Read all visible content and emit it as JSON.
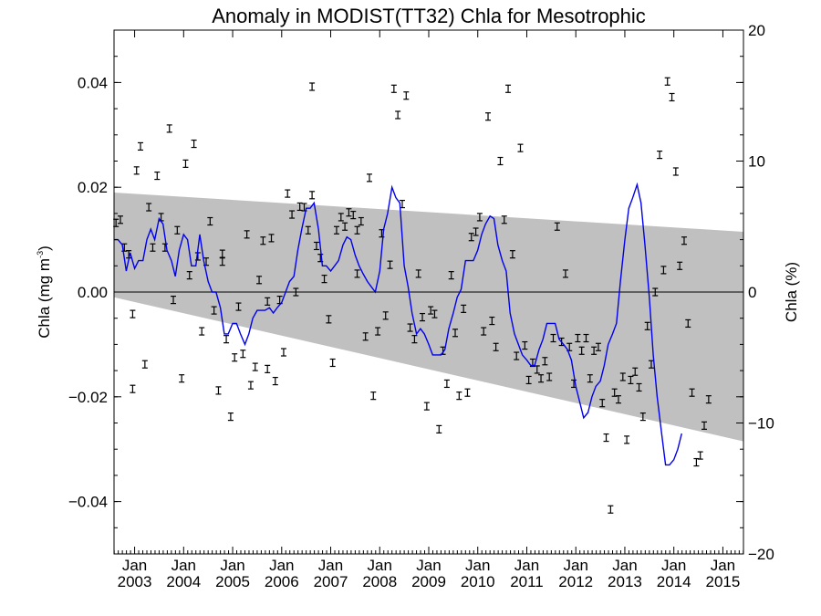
{
  "chart_data": {
    "type": "scatter",
    "title": "Anomaly in MODIST(TT32) Chla for Mesotrophic",
    "ylabel_left": "Chla (mg m",
    "ylabel_left_sup": "-3",
    "ylabel_left_end": ")",
    "ylabel_right": "Chla (%)",
    "x_range": [
      "2002-08-01",
      "2015-05-01"
    ],
    "ylim_left": [
      -0.05,
      0.05
    ],
    "ylim_right": [
      -20,
      20
    ],
    "y_ticks_left": [
      {
        "value": 0.04,
        "label": "0.04"
      },
      {
        "value": 0.02,
        "label": "0.02"
      },
      {
        "value": 0.0,
        "label": "0.00"
      },
      {
        "value": -0.02,
        "label": "−0.02"
      },
      {
        "value": -0.04,
        "label": "−0.04"
      }
    ],
    "y_ticks_right": [
      {
        "value": 20,
        "label": "20"
      },
      {
        "value": 10,
        "label": "10"
      },
      {
        "value": 0,
        "label": "0"
      },
      {
        "value": -10,
        "label": "−10"
      },
      {
        "value": -20,
        "label": "−20"
      }
    ],
    "x_ticks": [
      {
        "month": "Jan",
        "year": "2003",
        "x": 2003.0
      },
      {
        "month": "Jan",
        "year": "2004",
        "x": 2004.0
      },
      {
        "month": "Jan",
        "year": "2005",
        "x": 2005.0
      },
      {
        "month": "Jan",
        "year": "2006",
        "x": 2006.0
      },
      {
        "month": "Jan",
        "year": "2007",
        "x": 2007.0
      },
      {
        "month": "Jan",
        "year": "2008",
        "x": 2008.0
      },
      {
        "month": "Jan",
        "year": "2009",
        "x": 2009.0
      },
      {
        "month": "Jan",
        "year": "2010",
        "x": 2010.0
      },
      {
        "month": "Jan",
        "year": "2011",
        "x": 2011.0
      },
      {
        "month": "Jan",
        "year": "2012",
        "x": 2012.0
      },
      {
        "month": "Jan",
        "year": "2013",
        "x": 2013.0
      },
      {
        "month": "Jan",
        "year": "2014",
        "x": 2014.0
      },
      {
        "month": "Jan",
        "year": "2015",
        "x": 2015.0
      }
    ],
    "zero_line": 0.0,
    "envelope": {
      "upper": [
        [
          2002.58,
          0.019
        ],
        [
          2015.42,
          0.0115
        ]
      ],
      "lower": [
        [
          2002.58,
          -0.001
        ],
        [
          2015.42,
          -0.0285
        ]
      ],
      "color": "#c0c0c0"
    },
    "colors": {
      "line": "#0000ee",
      "points": "#000000",
      "axes": "#000000"
    },
    "monthly_anomalies": [
      [
        2002.62,
        0.0132
      ],
      [
        2002.71,
        0.0138
      ],
      [
        2002.79,
        0.0085
      ],
      [
        2002.88,
        0.0072
      ],
      [
        2002.96,
        -0.0042
      ],
      [
        2002.96,
        -0.0185
      ],
      [
        2003.04,
        0.0232
      ],
      [
        2003.12,
        0.0278
      ],
      [
        2003.21,
        -0.0138
      ],
      [
        2003.29,
        0.0162
      ],
      [
        2003.37,
        0.0085
      ],
      [
        2003.46,
        0.0222
      ],
      [
        2003.54,
        0.0143
      ],
      [
        2003.62,
        0.0085
      ],
      [
        2003.71,
        0.0312
      ],
      [
        2003.79,
        -0.0015
      ],
      [
        2003.87,
        0.0118
      ],
      [
        2003.96,
        -0.0165
      ],
      [
        2004.04,
        0.0245
      ],
      [
        2004.12,
        0.0032
      ],
      [
        2004.21,
        0.0283
      ],
      [
        2004.29,
        0.0068
      ],
      [
        2004.37,
        -0.0075
      ],
      [
        2004.46,
        0.0058
      ],
      [
        2004.54,
        0.0135
      ],
      [
        2004.62,
        -0.0035
      ],
      [
        2004.71,
        -0.0188
      ],
      [
        2004.79,
        0.0073
      ],
      [
        2004.79,
        0.0058
      ],
      [
        2004.87,
        -0.009
      ],
      [
        2004.96,
        -0.0238
      ],
      [
        2005.04,
        -0.0125
      ],
      [
        2005.12,
        -0.0028
      ],
      [
        2005.21,
        -0.0118
      ],
      [
        2005.29,
        0.011
      ],
      [
        2005.37,
        -0.0178
      ],
      [
        2005.46,
        -0.0143
      ],
      [
        2005.54,
        0.0023
      ],
      [
        2005.62,
        0.0098
      ],
      [
        2005.71,
        -0.0018
      ],
      [
        2005.71,
        -0.0147
      ],
      [
        2005.79,
        0.0103
      ],
      [
        2005.87,
        -0.017
      ],
      [
        2005.96,
        -0.0015
      ],
      [
        2006.04,
        -0.0115
      ],
      [
        2006.12,
        0.0188
      ],
      [
        2006.21,
        0.0148
      ],
      [
        2006.29,
        0.0
      ],
      [
        2006.37,
        0.0163
      ],
      [
        2006.46,
        0.0162
      ],
      [
        2006.54,
        0.0118
      ],
      [
        2006.62,
        0.0185
      ],
      [
        2006.62,
        0.0392
      ],
      [
        2006.71,
        0.0088
      ],
      [
        2006.79,
        0.0065
      ],
      [
        2006.87,
        0.0025
      ],
      [
        2006.96,
        -0.0052
      ],
      [
        2007.04,
        -0.0135
      ],
      [
        2007.12,
        0.0118
      ],
      [
        2007.21,
        0.0143
      ],
      [
        2007.29,
        0.0125
      ],
      [
        2007.37,
        0.0152
      ],
      [
        2007.46,
        0.0147
      ],
      [
        2007.54,
        0.0118
      ],
      [
        2007.54,
        0.0035
      ],
      [
        2007.62,
        0.0135
      ],
      [
        2007.71,
        -0.0085
      ],
      [
        2007.79,
        0.0218
      ],
      [
        2007.87,
        -0.0198
      ],
      [
        2007.96,
        -0.0075
      ],
      [
        2008.04,
        0.0112
      ],
      [
        2008.12,
        -0.0045
      ],
      [
        2008.21,
        0.0052
      ],
      [
        2008.29,
        0.0388
      ],
      [
        2008.37,
        0.0338
      ],
      [
        2008.46,
        0.0168
      ],
      [
        2008.54,
        0.0375
      ],
      [
        2008.62,
        -0.0068
      ],
      [
        2008.71,
        -0.009
      ],
      [
        2008.79,
        0.0035
      ],
      [
        2008.87,
        -0.0048
      ],
      [
        2008.96,
        -0.0218
      ],
      [
        2009.04,
        -0.0035
      ],
      [
        2009.12,
        -0.0042
      ],
      [
        2009.21,
        -0.0262
      ],
      [
        2009.29,
        -0.0112
      ],
      [
        2009.37,
        -0.0175
      ],
      [
        2009.46,
        0.0032
      ],
      [
        2009.54,
        -0.0078
      ],
      [
        2009.62,
        -0.0198
      ],
      [
        2009.71,
        -0.0032
      ],
      [
        2009.79,
        -0.0192
      ],
      [
        2009.87,
        0.0105
      ],
      [
        2009.96,
        0.0115
      ],
      [
        2010.04,
        0.0143
      ],
      [
        2010.12,
        -0.0075
      ],
      [
        2010.21,
        0.0335
      ],
      [
        2010.29,
        -0.0055
      ],
      [
        2010.37,
        -0.0105
      ],
      [
        2010.46,
        0.025
      ],
      [
        2010.54,
        0.0138
      ],
      [
        2010.62,
        0.0388
      ],
      [
        2010.71,
        0.0072
      ],
      [
        2010.79,
        -0.0122
      ],
      [
        2010.87,
        0.0275
      ],
      [
        2010.96,
        -0.0102
      ],
      [
        2011.04,
        -0.0168
      ],
      [
        2011.12,
        -0.0135
      ],
      [
        2011.21,
        -0.0148
      ],
      [
        2011.29,
        -0.0165
      ],
      [
        2011.37,
        -0.0132
      ],
      [
        2011.46,
        -0.0162
      ],
      [
        2011.54,
        -0.0088
      ],
      [
        2011.62,
        0.0125
      ],
      [
        2011.71,
        -0.0095
      ],
      [
        2011.79,
        0.0035
      ],
      [
        2011.87,
        -0.0105
      ],
      [
        2011.96,
        -0.0175
      ],
      [
        2012.04,
        -0.0088
      ],
      [
        2012.12,
        -0.0112
      ],
      [
        2012.21,
        -0.0088
      ],
      [
        2012.29,
        -0.0165
      ],
      [
        2012.37,
        -0.0112
      ],
      [
        2012.46,
        -0.0105
      ],
      [
        2012.54,
        -0.0212
      ],
      [
        2012.62,
        -0.0278
      ],
      [
        2012.71,
        -0.0415
      ],
      [
        2012.79,
        -0.0192
      ],
      [
        2012.87,
        -0.0205
      ],
      [
        2012.96,
        -0.0162
      ],
      [
        2013.04,
        -0.0282
      ],
      [
        2013.12,
        -0.0168
      ],
      [
        2013.21,
        -0.0152
      ],
      [
        2013.29,
        -0.0182
      ],
      [
        2013.37,
        -0.0238
      ],
      [
        2013.46,
        -0.0065
      ],
      [
        2013.54,
        -0.0138
      ],
      [
        2013.62,
        0.0
      ],
      [
        2013.71,
        0.0262
      ],
      [
        2013.79,
        0.0042
      ],
      [
        2013.87,
        0.0402
      ],
      [
        2013.96,
        0.0372
      ],
      [
        2014.04,
        0.023
      ],
      [
        2014.12,
        0.005
      ],
      [
        2014.21,
        0.0098
      ],
      [
        2014.29,
        -0.006
      ],
      [
        2014.37,
        -0.0192
      ],
      [
        2014.46,
        -0.0325
      ],
      [
        2014.54,
        -0.0312
      ],
      [
        2014.62,
        -0.0255
      ],
      [
        2014.71,
        -0.0205
      ]
    ],
    "smoothed_series": [
      [
        2002.58,
        0.01
      ],
      [
        2002.66,
        0.01
      ],
      [
        2002.75,
        0.009
      ],
      [
        2002.83,
        0.004
      ],
      [
        2002.91,
        0.0075
      ],
      [
        2003.0,
        0.0045
      ],
      [
        2003.08,
        0.006
      ],
      [
        2003.17,
        0.006
      ],
      [
        2003.25,
        0.01
      ],
      [
        2003.33,
        0.012
      ],
      [
        2003.41,
        0.01
      ],
      [
        2003.5,
        0.014
      ],
      [
        2003.58,
        0.013
      ],
      [
        2003.66,
        0.008
      ],
      [
        2003.75,
        0.006
      ],
      [
        2003.83,
        0.003
      ],
      [
        2003.91,
        0.008
      ],
      [
        2004.0,
        0.011
      ],
      [
        2004.08,
        0.01
      ],
      [
        2004.16,
        0.005
      ],
      [
        2004.25,
        0.005
      ],
      [
        2004.33,
        0.011
      ],
      [
        2004.41,
        0.006
      ],
      [
        2004.5,
        0.002
      ],
      [
        2004.58,
        0.0
      ],
      [
        2004.66,
        0.0
      ],
      [
        2004.75,
        -0.003
      ],
      [
        2004.83,
        -0.008
      ],
      [
        2004.91,
        -0.008
      ],
      [
        2005.0,
        -0.006
      ],
      [
        2005.08,
        -0.006
      ],
      [
        2005.16,
        -0.008
      ],
      [
        2005.25,
        -0.01
      ],
      [
        2005.33,
        -0.008
      ],
      [
        2005.41,
        -0.005
      ],
      [
        2005.5,
        -0.0035
      ],
      [
        2005.58,
        -0.0035
      ],
      [
        2005.66,
        -0.0035
      ],
      [
        2005.75,
        -0.003
      ],
      [
        2005.83,
        -0.004
      ],
      [
        2005.91,
        -0.003
      ],
      [
        2006.0,
        -0.002
      ],
      [
        2006.08,
        0.0
      ],
      [
        2006.16,
        0.002
      ],
      [
        2006.25,
        0.003
      ],
      [
        2006.33,
        0.008
      ],
      [
        2006.41,
        0.012
      ],
      [
        2006.5,
        0.016
      ],
      [
        2006.58,
        0.016
      ],
      [
        2006.66,
        0.017
      ],
      [
        2006.75,
        0.012
      ],
      [
        2006.83,
        0.005
      ],
      [
        2006.91,
        0.005
      ],
      [
        2007.0,
        0.004
      ],
      [
        2007.08,
        0.005
      ],
      [
        2007.16,
        0.006
      ],
      [
        2007.25,
        0.009
      ],
      [
        2007.33,
        0.0105
      ],
      [
        2007.41,
        0.01
      ],
      [
        2007.5,
        0.007
      ],
      [
        2007.58,
        0.005
      ],
      [
        2007.66,
        0.0035
      ],
      [
        2007.75,
        0.002
      ],
      [
        2007.83,
        0.001
      ],
      [
        2007.91,
        0.0
      ],
      [
        2008.0,
        0.004
      ],
      [
        2008.08,
        0.012
      ],
      [
        2008.16,
        0.015
      ],
      [
        2008.25,
        0.02
      ],
      [
        2008.33,
        0.018
      ],
      [
        2008.41,
        0.017
      ],
      [
        2008.5,
        0.005
      ],
      [
        2008.58,
        0.001
      ],
      [
        2008.66,
        -0.004
      ],
      [
        2008.75,
        -0.008
      ],
      [
        2008.83,
        -0.007
      ],
      [
        2008.91,
        -0.008
      ],
      [
        2009.0,
        -0.01
      ],
      [
        2009.08,
        -0.012
      ],
      [
        2009.16,
        -0.012
      ],
      [
        2009.25,
        -0.012
      ],
      [
        2009.33,
        -0.011
      ],
      [
        2009.41,
        -0.007
      ],
      [
        2009.5,
        -0.004
      ],
      [
        2009.58,
        -0.001
      ],
      [
        2009.66,
        0.0005
      ],
      [
        2009.75,
        0.006
      ],
      [
        2009.83,
        0.006
      ],
      [
        2009.91,
        0.006
      ],
      [
        2010.0,
        0.008
      ],
      [
        2010.08,
        0.011
      ],
      [
        2010.16,
        0.013
      ],
      [
        2010.25,
        0.0145
      ],
      [
        2010.33,
        0.014
      ],
      [
        2010.41,
        0.009
      ],
      [
        2010.5,
        0.006
      ],
      [
        2010.58,
        0.004
      ],
      [
        2010.66,
        -0.004
      ],
      [
        2010.75,
        -0.008
      ],
      [
        2010.83,
        -0.01
      ],
      [
        2010.91,
        -0.012
      ],
      [
        2011.0,
        -0.013
      ],
      [
        2011.08,
        -0.014
      ],
      [
        2011.16,
        -0.014
      ],
      [
        2011.25,
        -0.011
      ],
      [
        2011.33,
        -0.009
      ],
      [
        2011.41,
        -0.006
      ],
      [
        2011.5,
        -0.006
      ],
      [
        2011.58,
        -0.006
      ],
      [
        2011.66,
        -0.009
      ],
      [
        2011.75,
        -0.01
      ],
      [
        2011.83,
        -0.011
      ],
      [
        2011.91,
        -0.013
      ],
      [
        2012.0,
        -0.018
      ],
      [
        2012.08,
        -0.021
      ],
      [
        2012.16,
        -0.024
      ],
      [
        2012.25,
        -0.023
      ],
      [
        2012.33,
        -0.02
      ],
      [
        2012.41,
        -0.018
      ],
      [
        2012.5,
        -0.017
      ],
      [
        2012.58,
        -0.014
      ],
      [
        2012.66,
        -0.01
      ],
      [
        2012.75,
        -0.008
      ],
      [
        2012.83,
        -0.006
      ],
      [
        2012.91,
        0.002
      ],
      [
        2013.0,
        0.01
      ],
      [
        2013.08,
        0.016
      ],
      [
        2013.16,
        0.018
      ],
      [
        2013.25,
        0.0205
      ],
      [
        2013.33,
        0.017
      ],
      [
        2013.41,
        0.009
      ],
      [
        2013.5,
        -0.001
      ],
      [
        2013.58,
        -0.012
      ],
      [
        2013.66,
        -0.02
      ],
      [
        2013.75,
        -0.027
      ],
      [
        2013.83,
        -0.033
      ],
      [
        2013.91,
        -0.033
      ],
      [
        2014.0,
        -0.032
      ],
      [
        2014.08,
        -0.03
      ],
      [
        2014.16,
        -0.027
      ]
    ]
  }
}
